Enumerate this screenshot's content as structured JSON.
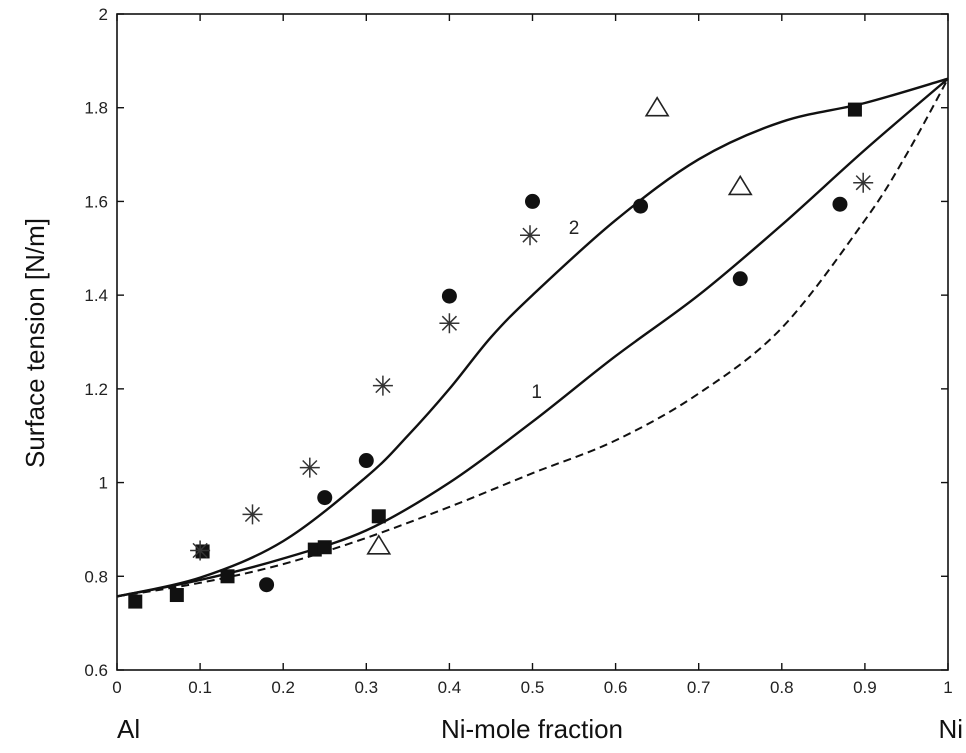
{
  "chart_data": {
    "type": "scatter",
    "title": "",
    "xlabel": "Ni-mole fraction",
    "ylabel": "Surface tension [N/m]",
    "xlim": [
      0,
      1
    ],
    "ylim": [
      0.6,
      2
    ],
    "xticks": [
      0,
      0.1,
      0.2,
      0.3,
      0.4,
      0.5,
      0.6,
      0.7,
      0.8,
      0.9,
      1
    ],
    "xtick_labels": [
      "0",
      "0.1",
      "0.2",
      "0.3",
      "0.4",
      "0.5",
      "0.6",
      "0.7",
      "0.8",
      "0.9",
      "1"
    ],
    "yticks": [
      0.6,
      0.8,
      1,
      1.2,
      1.4,
      1.6,
      1.8,
      2
    ],
    "ytick_labels": [
      "0.6",
      "0.8",
      "1",
      "1.2",
      "1.4",
      "1.6",
      "1.8",
      "2"
    ],
    "x_end_labels": {
      "left": "Al",
      "right": "Ni"
    },
    "grid": false,
    "lines": [
      {
        "label": "1",
        "style": "solid",
        "label_at": [
          0.505,
          1.18
        ],
        "x": [
          0,
          0.1,
          0.2,
          0.3,
          0.4,
          0.5,
          0.6,
          0.7,
          0.8,
          0.9,
          1
        ],
        "y": [
          0.757,
          0.792,
          0.838,
          0.898,
          1.0,
          1.13,
          1.27,
          1.4,
          1.55,
          1.71,
          1.862
        ]
      },
      {
        "label": "2",
        "style": "solid",
        "label_at": [
          0.55,
          1.53
        ],
        "x": [
          0,
          0.1,
          0.2,
          0.3,
          0.35,
          0.4,
          0.45,
          0.5,
          0.6,
          0.7,
          0.8,
          0.9,
          1
        ],
        "y": [
          0.757,
          0.797,
          0.875,
          1.012,
          1.1,
          1.2,
          1.31,
          1.4,
          1.56,
          1.69,
          1.77,
          1.81,
          1.862
        ]
      },
      {
        "label": "",
        "style": "dashed",
        "x": [
          0,
          0.1,
          0.2,
          0.3,
          0.4,
          0.5,
          0.6,
          0.7,
          0.8,
          0.9,
          0.95,
          1
        ],
        "y": [
          0.757,
          0.786,
          0.826,
          0.882,
          0.948,
          1.02,
          1.09,
          1.19,
          1.33,
          1.56,
          1.7,
          1.862
        ]
      }
    ],
    "markers": [
      {
        "marker": "square",
        "x": [
          0.022,
          0.072,
          0.103,
          0.133,
          0.238,
          0.25,
          0.315,
          0.888
        ],
        "y": [
          0.746,
          0.76,
          0.853,
          0.8,
          0.857,
          0.862,
          0.928,
          1.796
        ]
      },
      {
        "marker": "circle",
        "x": [
          0.18,
          0.25,
          0.3,
          0.4,
          0.5,
          0.63,
          0.75,
          0.87
        ],
        "y": [
          0.782,
          0.968,
          1.047,
          1.398,
          1.6,
          1.59,
          1.435,
          1.594
        ]
      },
      {
        "marker": "asterisk",
        "x": [
          0.1,
          0.163,
          0.232,
          0.32,
          0.4,
          0.497,
          0.898
        ],
        "y": [
          0.855,
          0.932,
          1.032,
          1.207,
          1.34,
          1.528,
          1.64
        ]
      },
      {
        "marker": "triangle",
        "x": [
          0.315,
          0.65,
          0.75
        ],
        "y": [
          0.865,
          1.8,
          1.632
        ]
      }
    ]
  }
}
